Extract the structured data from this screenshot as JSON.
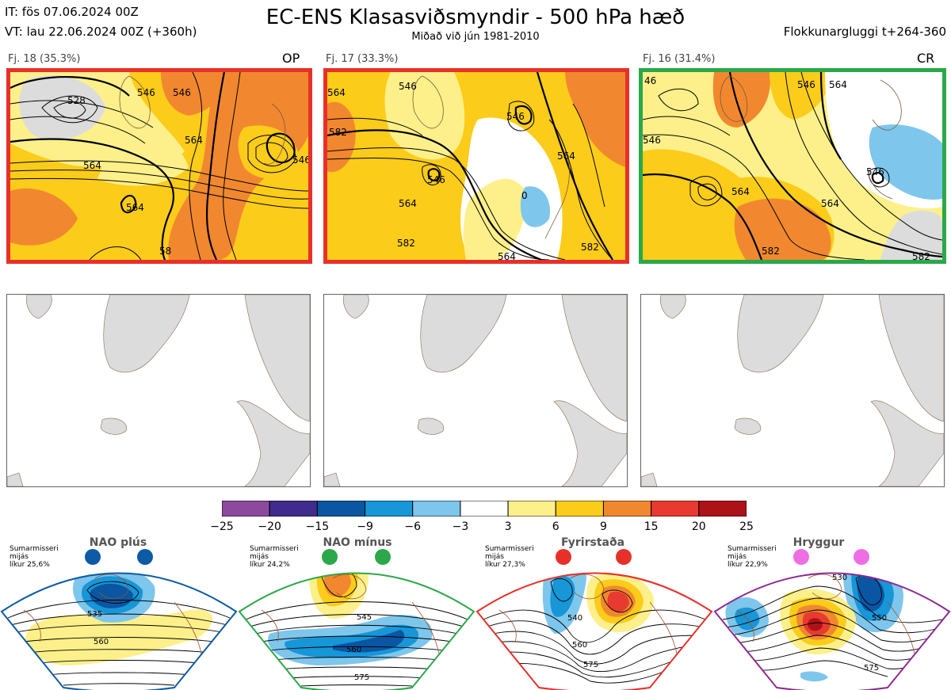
{
  "header": {
    "it_line": "IT: fös 07.06.2024 00Z",
    "vt_line": "VT: lau 22.06.2024 00Z  (+360h)",
    "title": "EC-ENS Klasasviðsmyndir - 500 hPa hæð",
    "subtitle": "Miðað við jún 1981-2010",
    "window": "Flokkunargluggi t+264-360"
  },
  "clusters": [
    {
      "label": "Fj. 18 (35.3%)",
      "code": "OP",
      "frame_color": "#e8302a",
      "contour_labels": [
        "528",
        "546",
        "564",
        "564",
        "564",
        "546",
        "546",
        "58"
      ]
    },
    {
      "label": "Fj. 17 (33.3%)",
      "code": "",
      "frame_color": "#e8302a",
      "contour_labels": [
        "564",
        "546",
        "546",
        "546",
        "564",
        "564",
        "582",
        "582",
        "582",
        "564",
        "0"
      ]
    },
    {
      "label": "Fj. 16 (31.4%)",
      "code": "CR",
      "frame_color": "#2aa84a",
      "contour_labels": [
        "46",
        "546",
        "564",
        "564",
        "546",
        "564",
        "582",
        "546",
        "582"
      ]
    }
  ],
  "colorbar": {
    "ticks": [
      "−25",
      "−20",
      "−15",
      "−9",
      "−6",
      "−3",
      "3",
      "6",
      "9",
      "15",
      "20",
      "25"
    ],
    "colors": [
      "#8b4a9c",
      "#3f2c8c",
      "#0a56a3",
      "#1796d8",
      "#7ec6ec",
      "#ffffff",
      "#fdf08a",
      "#fbcc1a",
      "#f1882f",
      "#e83a30",
      "#ae1219"
    ]
  },
  "regimes": [
    {
      "name": "NAO plús",
      "meta": [
        "Sumarmisseri",
        "mijás",
        "líkur 25,6%"
      ],
      "color": "#0d5aa5",
      "contour_labels": [
        "535",
        "560"
      ]
    },
    {
      "name": "NAO mínus",
      "meta": [
        "Sumarmisseri",
        "mijás",
        "líkur 24,2%"
      ],
      "color": "#2aa84a",
      "contour_labels": [
        "545",
        "560",
        "575"
      ]
    },
    {
      "name": "Fyrirstaða",
      "meta": [
        "Sumarmisseri",
        "mijás",
        "líkur 27,3%"
      ],
      "color": "#e8302a",
      "contour_labels": [
        "540",
        "560",
        "575"
      ]
    },
    {
      "name": "Hryggur",
      "meta": [
        "Sumarmisseri",
        "mijás",
        "líkur 22,9%"
      ],
      "color": "#ee6ee4",
      "contour_labels": [
        "530",
        "550",
        "575"
      ]
    }
  ]
}
